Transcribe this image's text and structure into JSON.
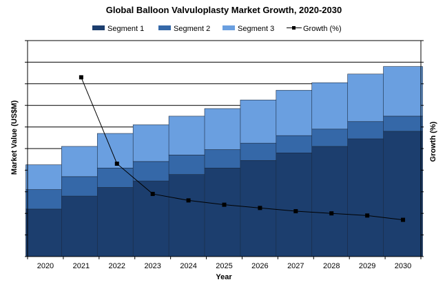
{
  "chart_data": {
    "type": "bar",
    "stacked": true,
    "title": "Global Balloon Valvuloplasty Market Growth, 2020-2030",
    "xlabel": "Year",
    "ylabel": "Market Value (US$M)",
    "y2label": "Growth (%)",
    "categories": [
      "2020",
      "2021",
      "2022",
      "2023",
      "2024",
      "2025",
      "2026",
      "2027",
      "2028",
      "2029",
      "2030"
    ],
    "ylim": [
      0,
      10
    ],
    "y2lim": [
      0,
      10
    ],
    "grid": true,
    "legend_position": "top",
    "series": [
      {
        "name": "Segment 1",
        "type": "bar",
        "color": "#1c3e6e",
        "values": [
          2.2,
          2.8,
          3.2,
          3.5,
          3.8,
          4.1,
          4.45,
          4.8,
          5.1,
          5.45,
          5.8
        ]
      },
      {
        "name": "Segment 2",
        "type": "bar",
        "color": "#3568a8",
        "values": [
          0.9,
          0.9,
          0.9,
          0.9,
          0.9,
          0.85,
          0.8,
          0.8,
          0.8,
          0.8,
          0.7
        ]
      },
      {
        "name": "Segment 3",
        "type": "bar",
        "color": "#6a9fe0",
        "values": [
          1.15,
          1.4,
          1.6,
          1.7,
          1.8,
          1.9,
          2.0,
          2.1,
          2.15,
          2.2,
          2.3
        ]
      },
      {
        "name": "Growth (%)",
        "type": "line",
        "axis": "right",
        "color": "#000000",
        "values": [
          null,
          8.3,
          4.3,
          2.9,
          2.6,
          2.4,
          2.25,
          2.1,
          2.0,
          1.9,
          1.7
        ]
      }
    ]
  }
}
